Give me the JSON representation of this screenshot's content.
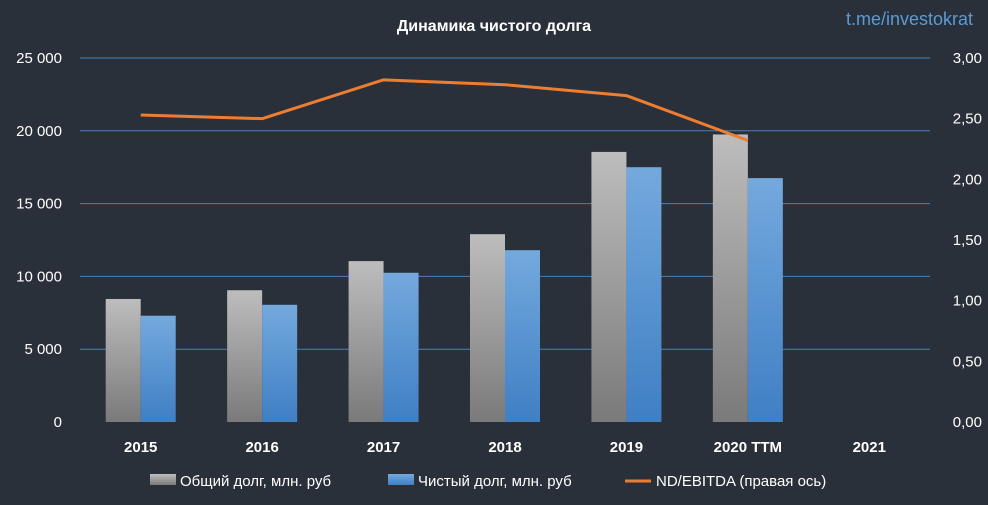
{
  "chart_data": {
    "type": "bar",
    "title": "Динамика чистого долга",
    "categories": [
      "2015",
      "2016",
      "2017",
      "2018",
      "2019",
      "2020 TTM",
      "2021"
    ],
    "series": [
      {
        "name": "Общий долг, млн. руб",
        "type": "bar",
        "axis": "left",
        "color": "#a5a5a5",
        "values": [
          8450,
          9050,
          11050,
          12900,
          18550,
          19750,
          null
        ]
      },
      {
        "name": "Чистый долг, млн. руб",
        "type": "bar",
        "axis": "left",
        "color": "#5b9bd5",
        "values": [
          7300,
          8050,
          10250,
          11800,
          17500,
          16750,
          null
        ]
      },
      {
        "name": "ND/EBITDA (правая ось)",
        "type": "line",
        "axis": "right",
        "color": "#ed7d31",
        "values": [
          2.53,
          2.5,
          2.82,
          2.78,
          2.69,
          2.32,
          null
        ]
      }
    ],
    "y_left": {
      "min": 0,
      "max": 25000,
      "ticks": [
        0,
        5000,
        10000,
        15000,
        20000,
        25000
      ],
      "tick_labels": [
        "0",
        "5 000",
        "10 000",
        "15 000",
        "20 000",
        "25 000"
      ]
    },
    "y_right": {
      "min": 0,
      "max": 3,
      "ticks": [
        0,
        0.5,
        1,
        1.5,
        2,
        2.5,
        3
      ],
      "tick_labels": [
        "0,00",
        "0,50",
        "1,00",
        "1,50",
        "2,00",
        "2,50",
        "3,00"
      ]
    },
    "grid": true,
    "legend_position": "bottom"
  },
  "watermark": "t.me/investokrat",
  "colors": {
    "background": "#2a3039",
    "gridline": "#4a7fb5",
    "text": "#ffffff"
  }
}
